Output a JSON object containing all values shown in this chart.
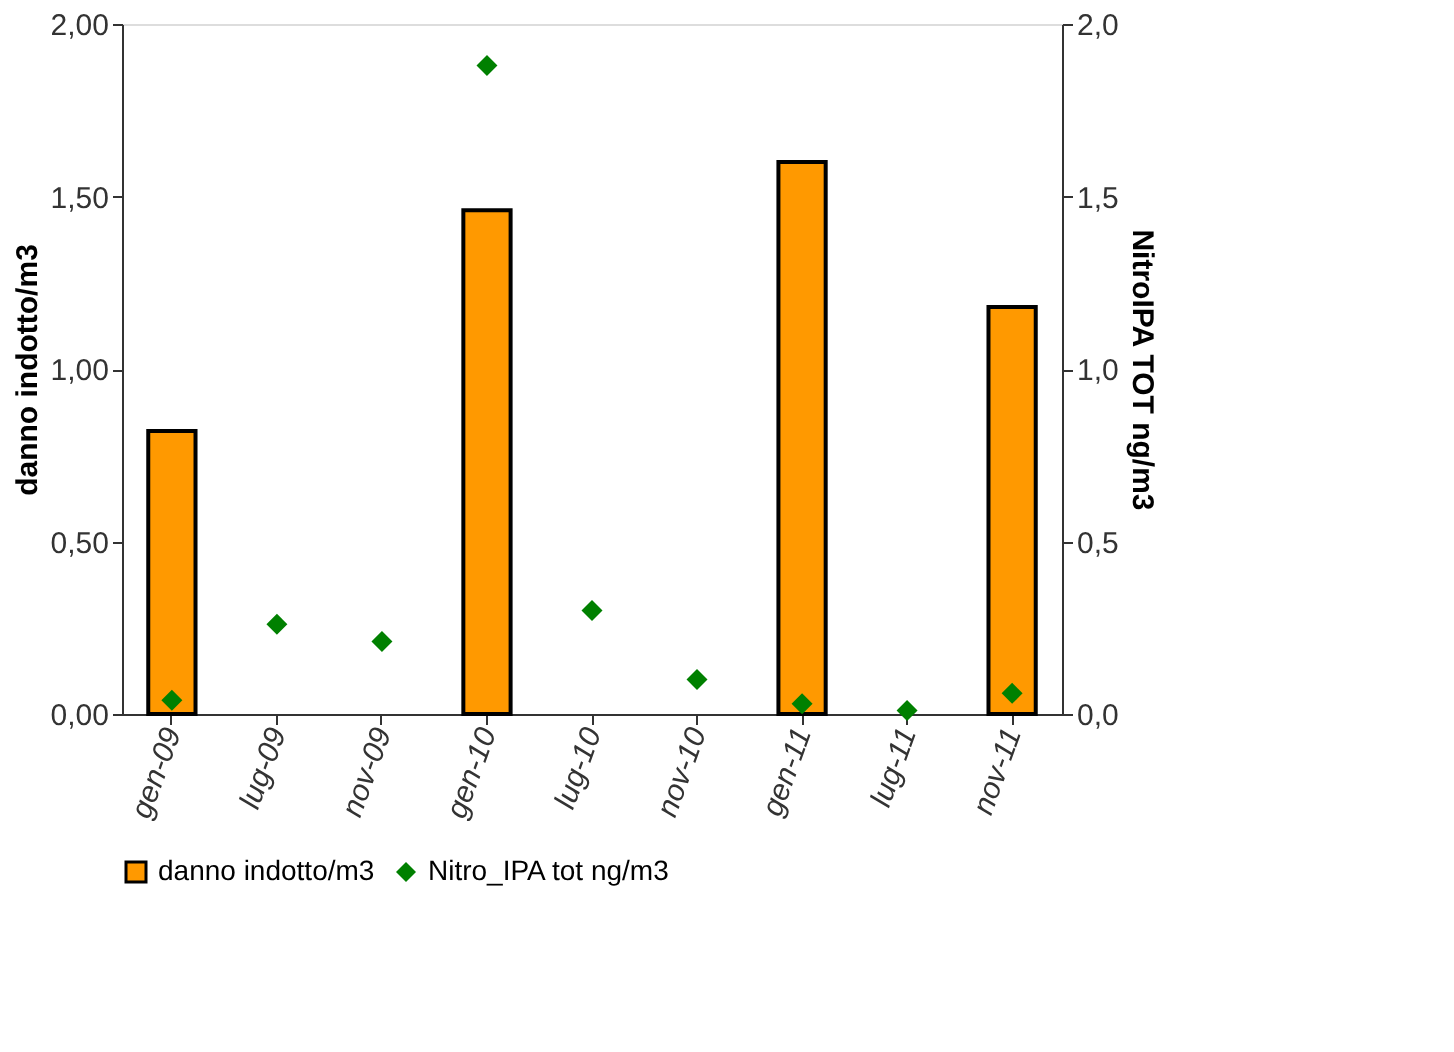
{
  "chart_data": {
    "type": "bar",
    "categories": [
      "gen-09",
      "lug-09",
      "nov-09",
      "gen-10",
      "lug-10",
      "nov-10",
      "gen-11",
      "lug-11",
      "nov-11"
    ],
    "ylabel": "danno indotto/m3",
    "y2label": "NitroIPA TOT ng/m3",
    "ylim": [
      0,
      2
    ],
    "yticks": [
      {
        "value": 0,
        "label": "0,00"
      },
      {
        "value": 0.5,
        "label": "0,50"
      },
      {
        "value": 1,
        "label": "1,00"
      },
      {
        "value": 1.5,
        "label": "1,50"
      },
      {
        "value": 2,
        "label": "2,00"
      }
    ],
    "y2lim": [
      0,
      2
    ],
    "y2ticks": [
      {
        "value": 0,
        "label": "0,0"
      },
      {
        "value": 0.5,
        "label": "0,5"
      },
      {
        "value": 1,
        "label": "1,0"
      },
      {
        "value": 1.5,
        "label": "1,5"
      },
      {
        "value": 2,
        "label": "2,0"
      }
    ],
    "series": [
      {
        "name": "danno indotto/m3",
        "color": "#ff9900",
        "values": [
          0.82,
          null,
          null,
          1.46,
          null,
          null,
          1.6,
          null,
          1.18
        ]
      },
      {
        "name": "Nitro_IPA tot ng/m3",
        "type": "scatter",
        "axis": "y2",
        "marker": "diamond",
        "color": "#008000",
        "values": [
          0.04,
          0.26,
          0.21,
          1.88,
          0.3,
          0.1,
          0.03,
          0.01,
          0.06
        ]
      }
    ],
    "legend": "bottom",
    "grid": false
  }
}
